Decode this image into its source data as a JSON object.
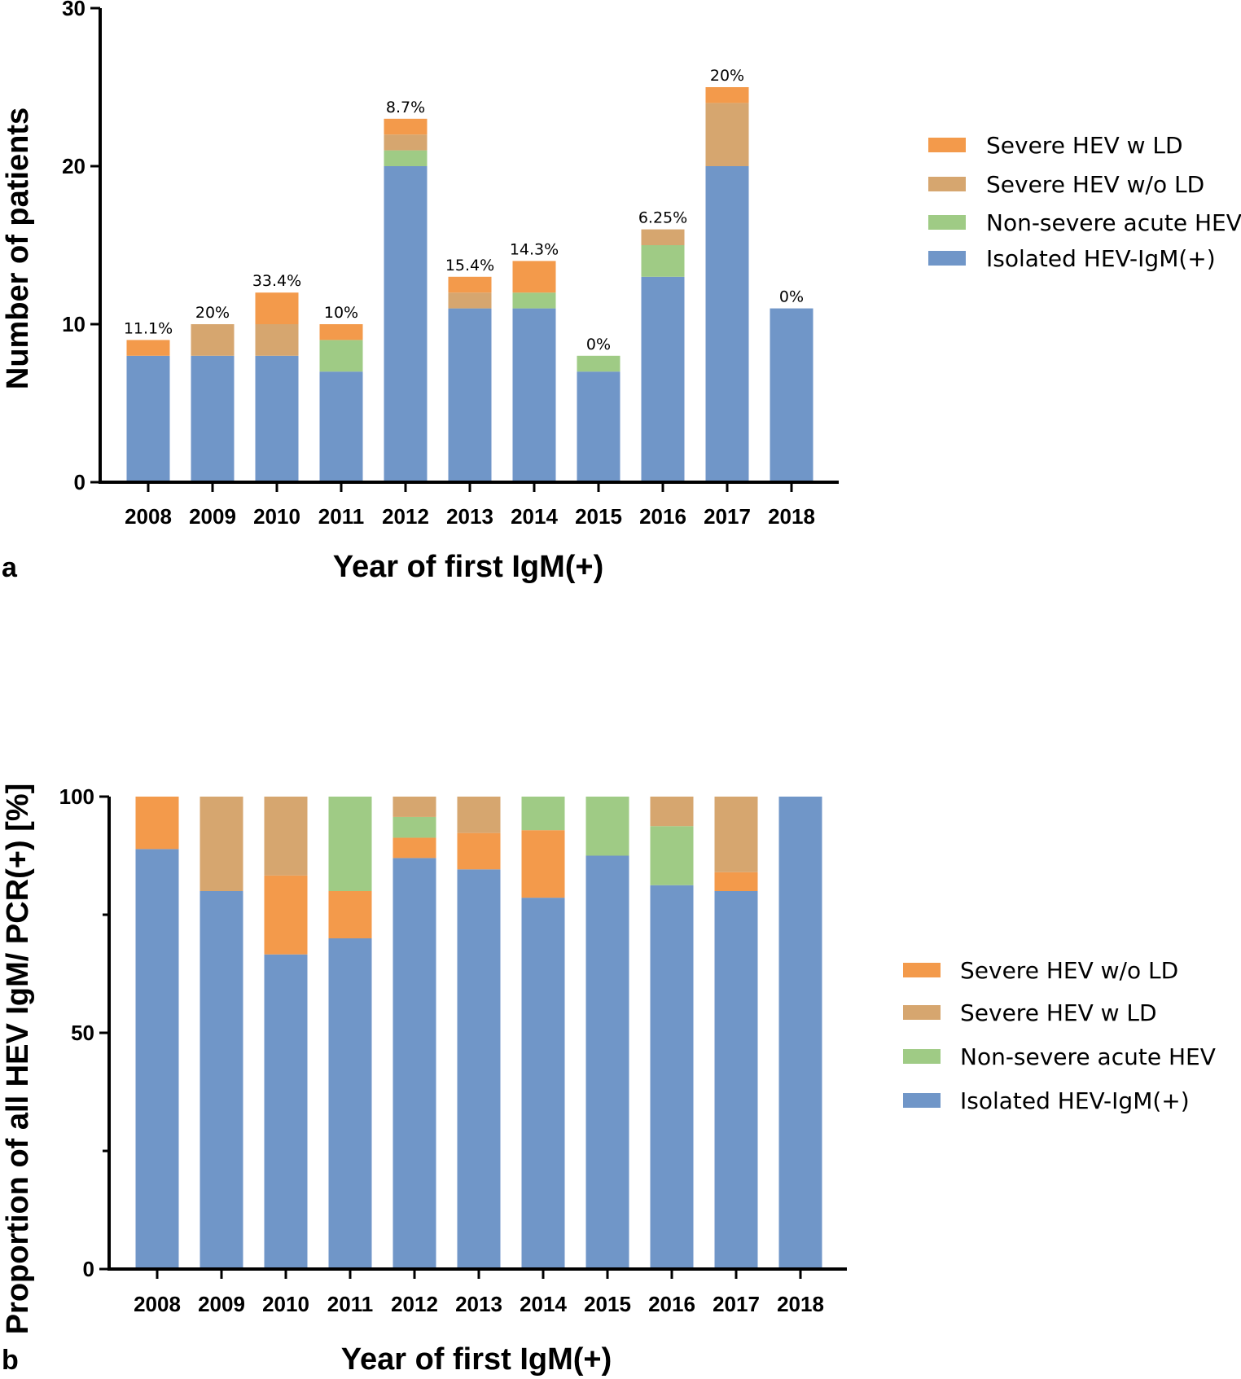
{
  "colors": {
    "orange": "#F39A4B",
    "tan": "#D6A66F",
    "green": "#9FCB85",
    "blue": "#7096C8",
    "axis": "#000000"
  },
  "chart_data": [
    {
      "type": "bar",
      "stacked": true,
      "panel_label": "a",
      "title": "",
      "xlabel": "Year of first IgM(+)",
      "ylabel": "Number of patients",
      "ylim": [
        0,
        30
      ],
      "yticks": [
        "0",
        "10",
        "20",
        "30"
      ],
      "categories": [
        "2008",
        "2009",
        "2010",
        "2011",
        "2012",
        "2013",
        "2014",
        "2015",
        "2016",
        "2017",
        "2018"
      ],
      "series": [
        {
          "name": "Isolated HEV-IgM(+)",
          "color": "blue",
          "values": [
            8,
            8,
            8,
            7,
            20,
            11,
            11,
            7,
            13,
            20,
            11
          ]
        },
        {
          "name": "Non-severe acute HEV",
          "color": "green",
          "values": [
            0,
            0,
            0,
            2,
            1,
            0,
            1,
            1,
            2,
            0,
            0
          ]
        },
        {
          "name": "Severe HEV w/o LD",
          "color": "tan",
          "values": [
            0,
            2,
            2,
            0,
            1,
            1,
            0,
            0,
            1,
            4,
            0
          ]
        },
        {
          "name": "Severe HEV w LD",
          "color": "orange",
          "values": [
            1,
            0,
            2,
            1,
            1,
            1,
            2,
            0,
            0,
            1,
            0
          ]
        }
      ],
      "data_labels": [
        "11.1%",
        "20%",
        "33.4%",
        "10%",
        "8.7%",
        "15.4%",
        "14.3%",
        "0%",
        "6.25%",
        "20%",
        "0%"
      ],
      "legend": [
        {
          "label": "Severe HEV w LD",
          "color": "orange"
        },
        {
          "label": "Severe HEV w/o LD",
          "color": "tan"
        },
        {
          "label": "Non-severe acute HEV",
          "color": "green"
        },
        {
          "label": "Isolated HEV-IgM(+)",
          "color": "blue"
        }
      ],
      "legend_position": "right"
    },
    {
      "type": "bar",
      "stacked": true,
      "panel_label": "b",
      "title": "",
      "xlabel": "Year of first IgM(+)",
      "ylabel": "Proportion of all HEV IgM/ PCR(+) [%]",
      "ylim": [
        0,
        100
      ],
      "yticks": [
        "0",
        "50",
        "100"
      ],
      "minor_yticks": [
        25,
        75
      ],
      "categories": [
        "2008",
        "2009",
        "2010",
        "2011",
        "2012",
        "2013",
        "2014",
        "2015",
        "2016",
        "2017",
        "2018"
      ],
      "series": [
        {
          "name": "Isolated HEV-IgM(+)",
          "color": "blue",
          "values": [
            88.9,
            80,
            66.6,
            70,
            87,
            84.6,
            78.6,
            87.5,
            81.25,
            80,
            100
          ]
        },
        {
          "name": "Severe HEV w/o LD",
          "color": "orange",
          "values": [
            11.1,
            0,
            16.7,
            10,
            4.3,
            7.7,
            14.3,
            0,
            0,
            4,
            0
          ]
        },
        {
          "name": "Non-severe acute HEV",
          "color": "green",
          "values": [
            0,
            0,
            0,
            20,
            4.4,
            0,
            7.1,
            12.5,
            12.5,
            0,
            0
          ]
        },
        {
          "name": "Severe HEV w LD",
          "color": "tan",
          "values": [
            0,
            20,
            16.7,
            0,
            4.3,
            7.7,
            0,
            0,
            6.25,
            16,
            0
          ]
        }
      ],
      "legend": [
        {
          "label": "Severe HEV w/o LD",
          "color": "orange"
        },
        {
          "label": "Severe HEV w LD",
          "color": "tan"
        },
        {
          "label": "Non-severe acute HEV",
          "color": "green"
        },
        {
          "label": "Isolated HEV-IgM(+)",
          "color": "blue"
        }
      ],
      "legend_position": "right"
    }
  ]
}
